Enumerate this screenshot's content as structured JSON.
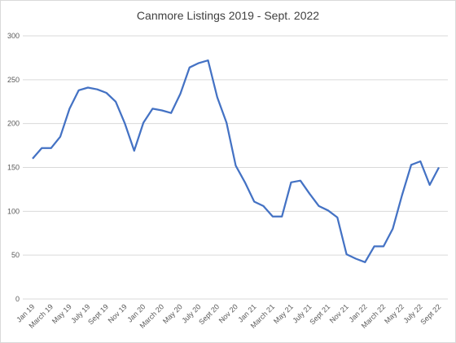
{
  "chart_data": {
    "type": "line",
    "title": "Canmore Listings 2019 - Sept. 2022",
    "categories": [
      "Jan 19",
      null,
      "March 19",
      null,
      "May 19",
      null,
      "July 19",
      null,
      "Sept 19",
      null,
      "Nov 19",
      null,
      "Jan 20",
      null,
      "March 20",
      null,
      "May 20",
      null,
      "July 20",
      null,
      "Sept 20",
      null,
      "Nov 20",
      null,
      "Jan 21",
      null,
      "March 21",
      null,
      "May 21",
      null,
      "July 21",
      null,
      "Sept 21",
      null,
      "Nov 21",
      null,
      "Jan 22",
      null,
      "March 22",
      null,
      "May 22",
      null,
      "July 22",
      null,
      "Sept 22"
    ],
    "values": [
      160,
      172,
      172,
      185,
      217,
      238,
      241,
      239,
      235,
      225,
      200,
      169,
      201,
      217,
      215,
      212,
      234,
      264,
      269,
      272,
      230,
      201,
      152,
      133,
      111,
      106,
      94,
      94,
      133,
      135,
      120,
      106,
      101,
      93,
      51,
      46,
      42,
      60,
      60,
      80,
      118,
      153,
      157,
      130,
      150
    ],
    "color": "#4472c4",
    "ylim": [
      0,
      300
    ],
    "yticks": [
      0,
      50,
      100,
      150,
      200,
      250,
      300
    ],
    "grid": true
  }
}
